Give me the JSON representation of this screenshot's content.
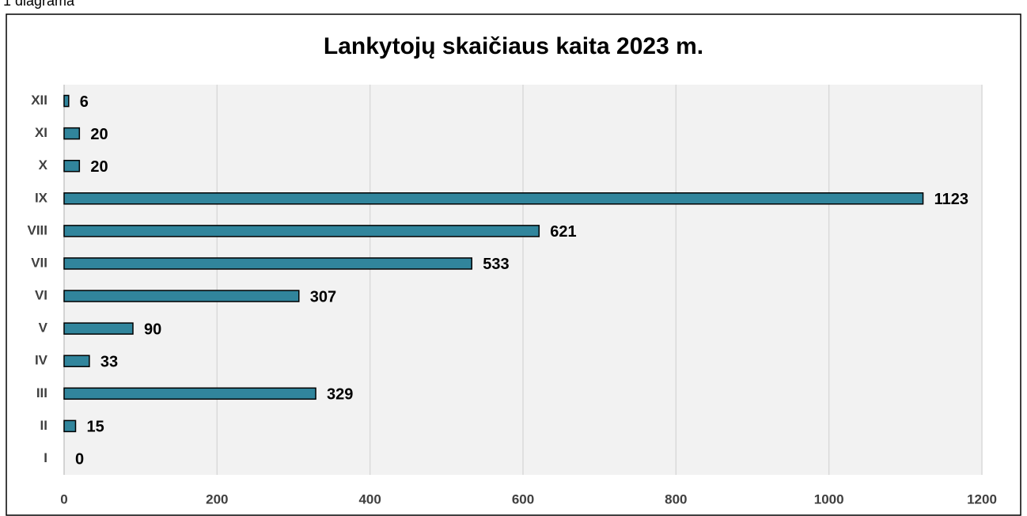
{
  "caption": "1 diagrama",
  "chart_data": {
    "type": "barh",
    "title": "Lankytojų skaičiaus kaita 2023 m.",
    "categories": [
      "I",
      "II",
      "III",
      "IV",
      "V",
      "VI",
      "VII",
      "VIII",
      "IX",
      "X",
      "XI",
      "XII"
    ],
    "values": [
      0,
      15,
      329,
      33,
      90,
      307,
      533,
      621,
      1123,
      20,
      20,
      6
    ],
    "color": "#31859c",
    "xlim": [
      0,
      1200
    ],
    "xticks": [
      0,
      200,
      400,
      600,
      800,
      1000,
      1200
    ],
    "grid": true
  }
}
